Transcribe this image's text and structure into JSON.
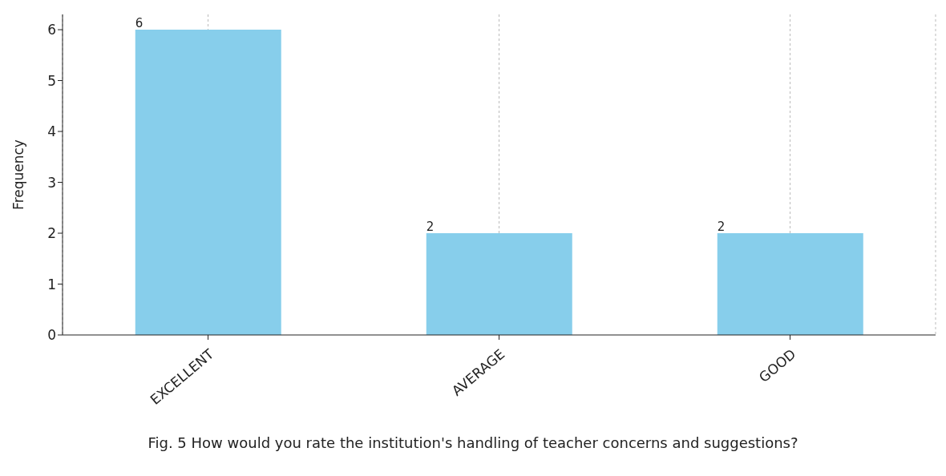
{
  "chart_data": {
    "type": "bar",
    "categories": [
      "EXCELLENT",
      "AVERAGE",
      "GOOD"
    ],
    "values": [
      6,
      2,
      2
    ],
    "color": "#87ceeb",
    "ylabel": "Frequency",
    "ylim": [
      0,
      6.3
    ],
    "yticks": [
      0,
      1,
      2,
      3,
      4,
      5,
      6
    ],
    "grid": "x",
    "data_labels": true,
    "annotations": [
      "Fig. 5 How would you rate the institution's handling of teacher concerns and suggestions?"
    ]
  }
}
